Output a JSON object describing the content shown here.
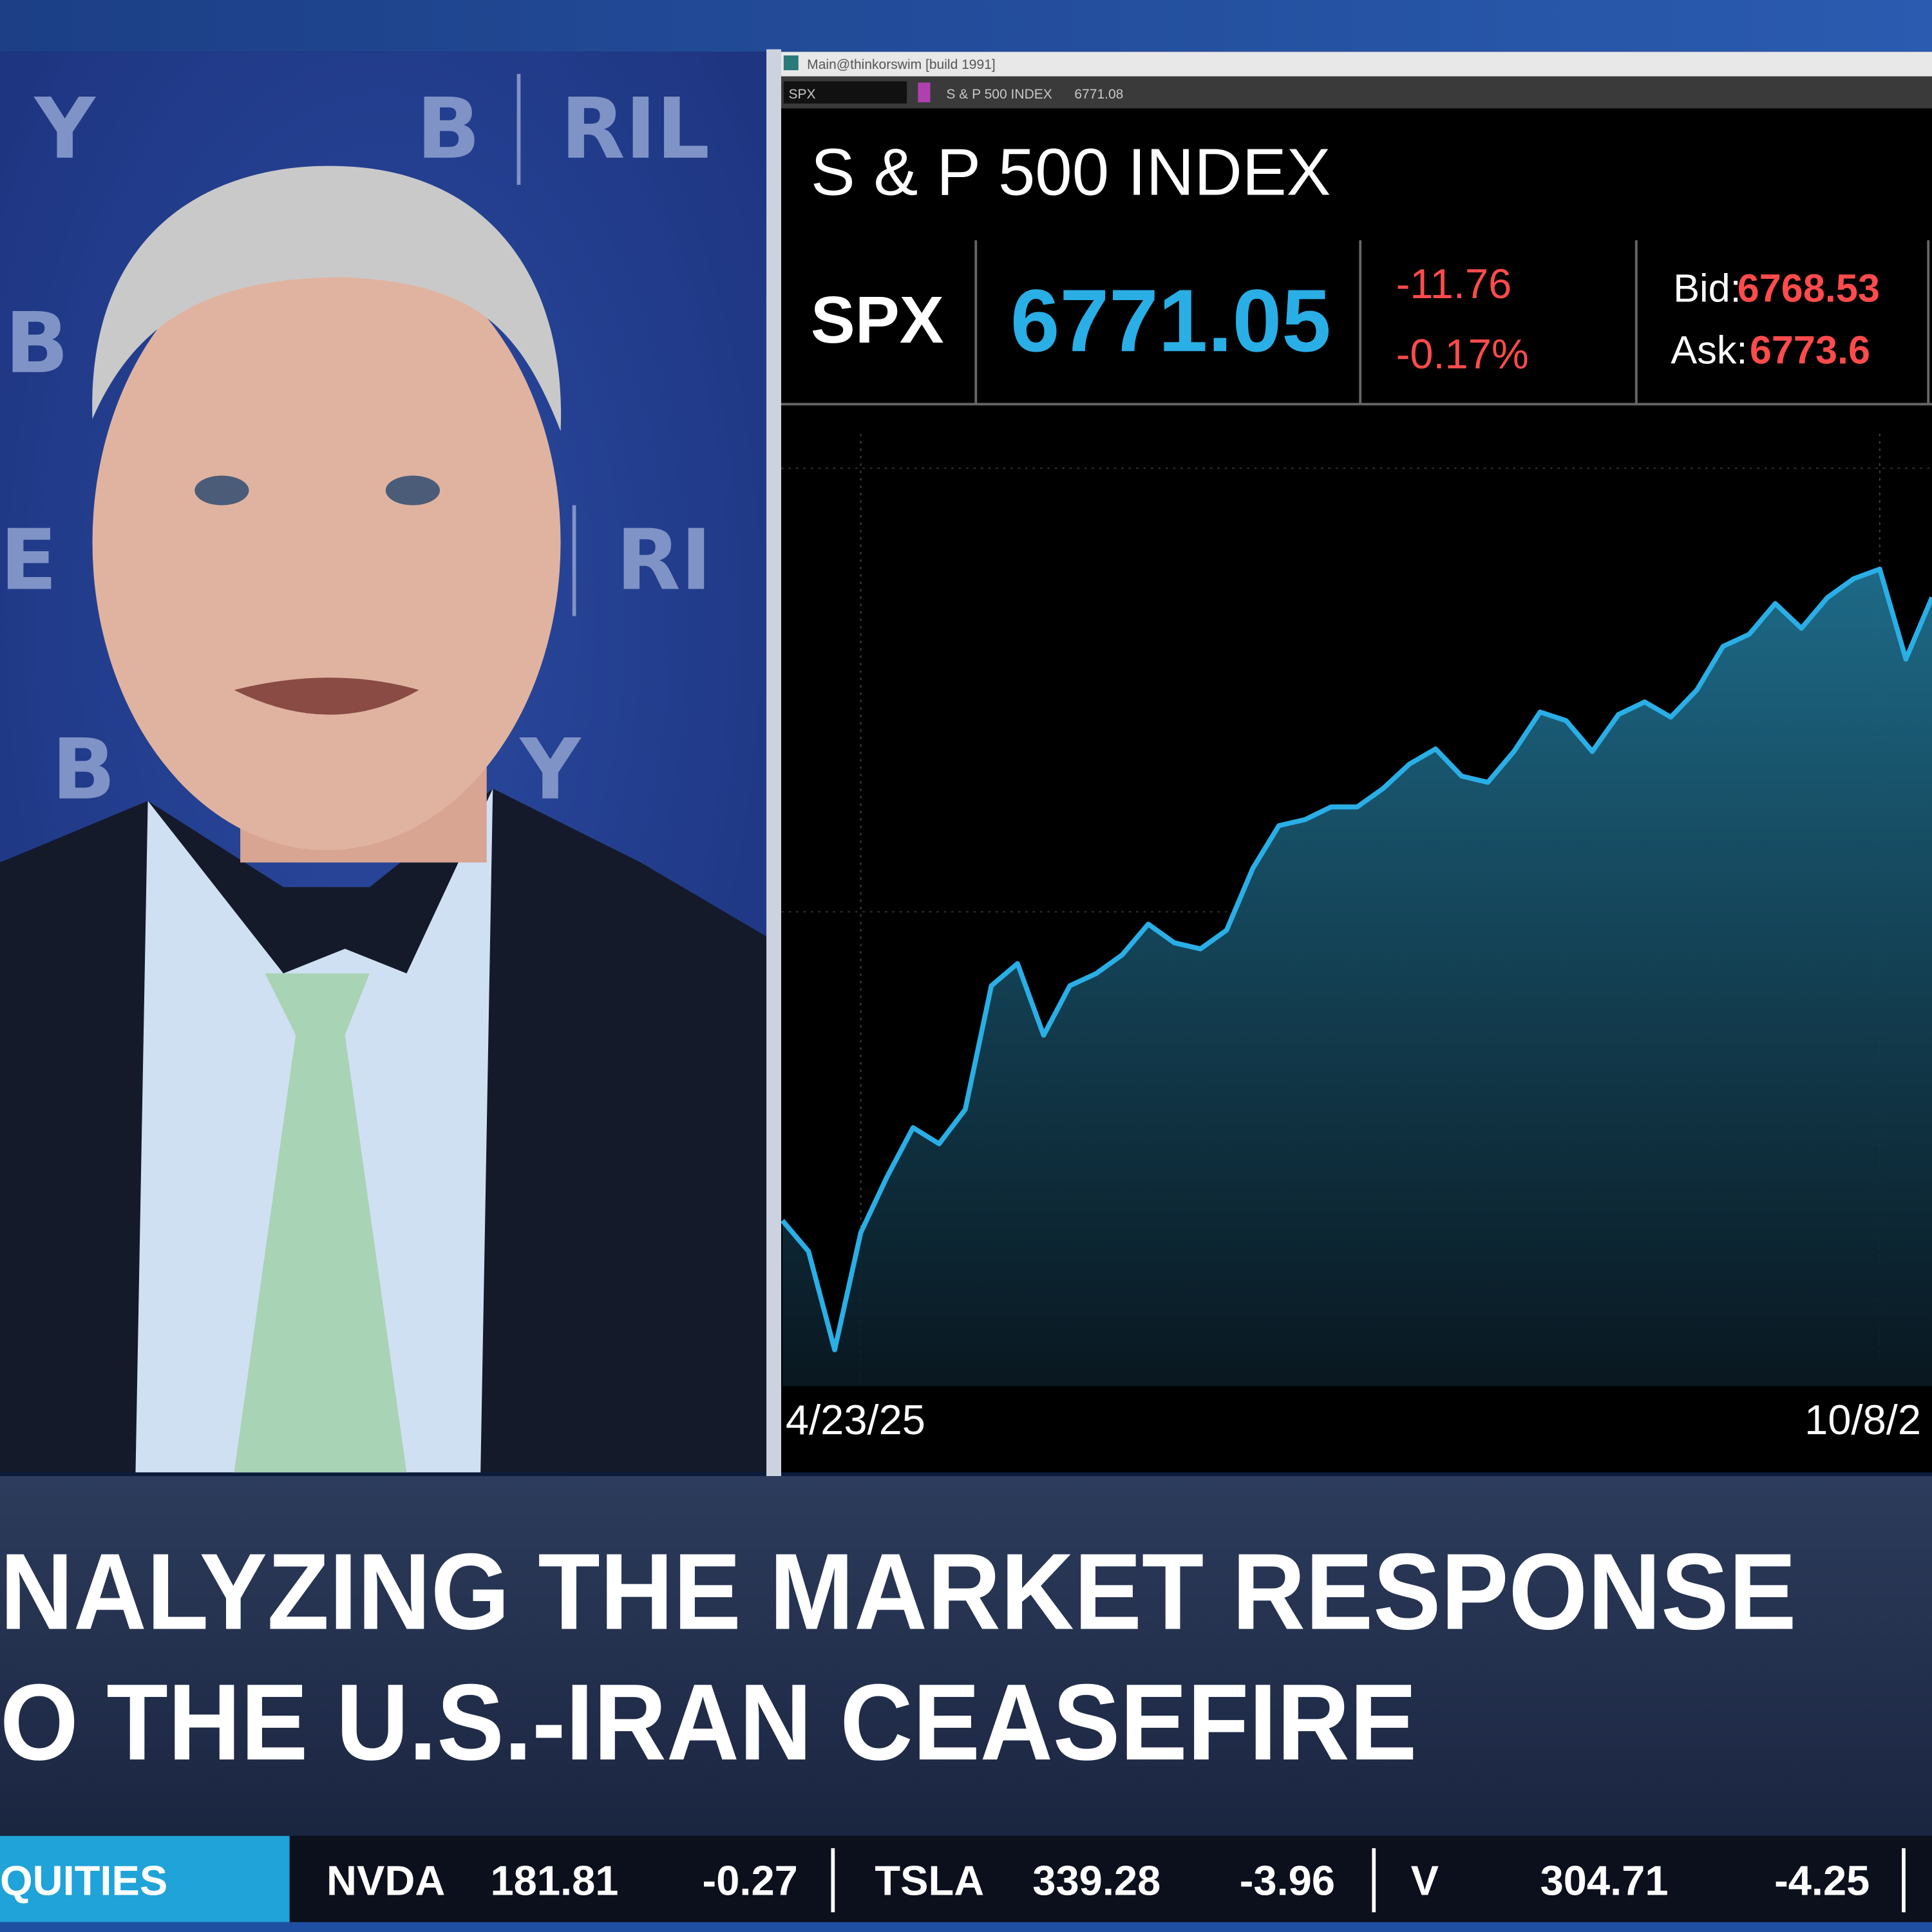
{
  "video_panel": {
    "logo_fragments": [
      "Y",
      "B",
      "RIL",
      "B",
      "E",
      "RI",
      "B",
      "Y"
    ]
  },
  "window": {
    "title": "Main@thinkorswim [build 1991]",
    "toolbar": {
      "symbol": "SPX",
      "name": "S & P 500 INDEX",
      "last": "6771.08"
    }
  },
  "quote": {
    "name": "S & P 500 INDEX",
    "symbol": "SPX",
    "last": "6771.05",
    "change": "-11.76",
    "change_percent": "-0.17%",
    "bid_label": "Bid:",
    "bid": "6768.53",
    "ask_label": "Ask:",
    "ask": "6773.6"
  },
  "chart_data": {
    "type": "area",
    "categories": [
      null,
      null,
      null,
      "4/23/25",
      null,
      null,
      null,
      null,
      null,
      null,
      null,
      null,
      null,
      null,
      null,
      null,
      null,
      null,
      null,
      null,
      null,
      null,
      null,
      null,
      null,
      null,
      null,
      null,
      null,
      null,
      null,
      null,
      null,
      null,
      null,
      null,
      null,
      null,
      null,
      null,
      null,
      null,
      "10/8/2",
      null,
      null
    ],
    "values": [
      5458,
      5397,
      5202,
      5434,
      5544,
      5642,
      5610,
      5678,
      5923,
      5967,
      5825,
      5923,
      5947,
      5984,
      6045,
      6008,
      5996,
      6033,
      6155,
      6240,
      6252,
      6277,
      6277,
      6314,
      6362,
      6392,
      6338,
      6326,
      6387,
      6465,
      6448,
      6387,
      6460,
      6485,
      6455,
      6509,
      6595,
      6619,
      6680,
      6631,
      6692,
      6729,
      6748,
      6570,
      6692
    ],
    "color": "#2aaee6",
    "ylim": [
      5130,
      7065
    ]
  },
  "headline": {
    "lines": [
      "NALYZING THE MARKET RESPONSE",
      "O THE U.S.-IRAN CEASEFIRE"
    ]
  },
  "ticker": {
    "section": "QUITIES",
    "items": [
      {
        "symbol": "NVDA",
        "price": "181.81",
        "change": "-0.27"
      },
      {
        "symbol": "TSLA",
        "price": "339.28",
        "change": "-3.96"
      },
      {
        "symbol": "V",
        "price": "304.71",
        "change": "-4.25"
      }
    ]
  }
}
